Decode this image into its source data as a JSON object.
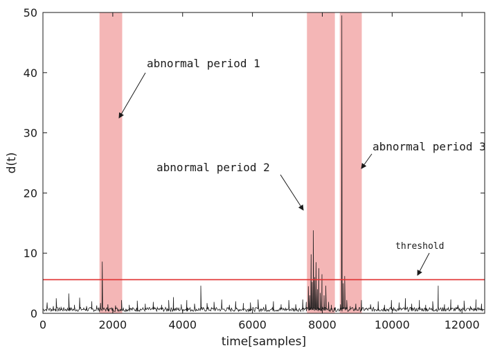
{
  "chart_data": {
    "type": "line",
    "xlabel": "time[samples]",
    "ylabel": "d(t)",
    "xlim": [
      0,
      12650
    ],
    "ylim": [
      0,
      50
    ],
    "xticks": [
      0,
      2000,
      4000,
      6000,
      8000,
      10000,
      12000
    ],
    "yticks": [
      0,
      10,
      20,
      30,
      40,
      50
    ],
    "xtick_labels": [
      "0",
      "2000",
      "4000",
      "6000",
      "8000",
      "10000",
      "12000"
    ],
    "ytick_labels": [
      "0",
      "10",
      "20",
      "30",
      "40",
      "50"
    ],
    "grid": false,
    "colors": {
      "signal": "#1a1a1a",
      "threshold": "#e03030",
      "band": "#f4b6b6"
    },
    "threshold": {
      "value": 5.6,
      "label": "threshold"
    },
    "abnormal_periods": [
      {
        "label": "abnormal period 1",
        "start": 1620,
        "end": 2270
      },
      {
        "label": "abnormal period 2",
        "start": 7560,
        "end": 8360
      },
      {
        "label": "abnormal period 3",
        "start": 8500,
        "end": 9130
      }
    ],
    "baseline_range": [
      0.3,
      1.0
    ],
    "spikes": [
      {
        "x": 120,
        "y": 1.8
      },
      {
        "x": 300,
        "y": 1.2
      },
      {
        "x": 380,
        "y": 2.5
      },
      {
        "x": 520,
        "y": 1.1
      },
      {
        "x": 740,
        "y": 3.3
      },
      {
        "x": 900,
        "y": 1.4
      },
      {
        "x": 1050,
        "y": 2.6
      },
      {
        "x": 1250,
        "y": 1.2
      },
      {
        "x": 1400,
        "y": 2.0
      },
      {
        "x": 1540,
        "y": 1.3
      },
      {
        "x": 1650,
        "y": 1.7
      },
      {
        "x": 1700,
        "y": 8.6
      },
      {
        "x": 1860,
        "y": 1.5
      },
      {
        "x": 2080,
        "y": 1.3
      },
      {
        "x": 2250,
        "y": 2.2
      },
      {
        "x": 2470,
        "y": 1.4
      },
      {
        "x": 2700,
        "y": 2.1
      },
      {
        "x": 2930,
        "y": 1.6
      },
      {
        "x": 3160,
        "y": 1.9
      },
      {
        "x": 3400,
        "y": 1.4
      },
      {
        "x": 3600,
        "y": 2.2
      },
      {
        "x": 3740,
        "y": 2.7
      },
      {
        "x": 3960,
        "y": 1.5
      },
      {
        "x": 4120,
        "y": 2.2
      },
      {
        "x": 4340,
        "y": 1.6
      },
      {
        "x": 4520,
        "y": 4.6
      },
      {
        "x": 4700,
        "y": 1.7
      },
      {
        "x": 4900,
        "y": 1.9
      },
      {
        "x": 5120,
        "y": 2.3
      },
      {
        "x": 5340,
        "y": 1.4
      },
      {
        "x": 5520,
        "y": 2.0
      },
      {
        "x": 5740,
        "y": 1.7
      },
      {
        "x": 5940,
        "y": 1.8
      },
      {
        "x": 6160,
        "y": 2.3
      },
      {
        "x": 6380,
        "y": 1.5
      },
      {
        "x": 6600,
        "y": 2.0
      },
      {
        "x": 6820,
        "y": 1.5
      },
      {
        "x": 7040,
        "y": 2.2
      },
      {
        "x": 7240,
        "y": 1.5
      },
      {
        "x": 7440,
        "y": 2.3
      },
      {
        "x": 7540,
        "y": 1.9
      },
      {
        "x": 7600,
        "y": 4.5
      },
      {
        "x": 7640,
        "y": 3.0
      },
      {
        "x": 7680,
        "y": 9.8
      },
      {
        "x": 7710,
        "y": 5.2
      },
      {
        "x": 7740,
        "y": 13.8
      },
      {
        "x": 7780,
        "y": 6.0
      },
      {
        "x": 7820,
        "y": 8.5
      },
      {
        "x": 7860,
        "y": 4.0
      },
      {
        "x": 7900,
        "y": 7.5
      },
      {
        "x": 7940,
        "y": 3.4
      },
      {
        "x": 7990,
        "y": 6.5
      },
      {
        "x": 8050,
        "y": 3.0
      },
      {
        "x": 8100,
        "y": 4.6
      },
      {
        "x": 8180,
        "y": 1.9
      },
      {
        "x": 8260,
        "y": 1.4
      },
      {
        "x": 8350,
        "y": 0.9
      },
      {
        "x": 8520,
        "y": 1.5
      },
      {
        "x": 8560,
        "y": 49.5
      },
      {
        "x": 8600,
        "y": 5.0
      },
      {
        "x": 8640,
        "y": 6.2
      },
      {
        "x": 8700,
        "y": 2.2
      },
      {
        "x": 8800,
        "y": 1.2
      },
      {
        "x": 8960,
        "y": 1.6
      },
      {
        "x": 9120,
        "y": 2.2
      },
      {
        "x": 9380,
        "y": 1.5
      },
      {
        "x": 9600,
        "y": 2.0
      },
      {
        "x": 9780,
        "y": 1.4
      },
      {
        "x": 9980,
        "y": 2.2
      },
      {
        "x": 10200,
        "y": 1.8
      },
      {
        "x": 10380,
        "y": 2.5
      },
      {
        "x": 10560,
        "y": 1.6
      },
      {
        "x": 10780,
        "y": 2.2
      },
      {
        "x": 10960,
        "y": 1.4
      },
      {
        "x": 11160,
        "y": 2.0
      },
      {
        "x": 11320,
        "y": 4.6
      },
      {
        "x": 11500,
        "y": 1.5
      },
      {
        "x": 11680,
        "y": 2.3
      },
      {
        "x": 11880,
        "y": 1.4
      },
      {
        "x": 12060,
        "y": 2.1
      },
      {
        "x": 12240,
        "y": 1.2
      },
      {
        "x": 12400,
        "y": 2.3
      },
      {
        "x": 12560,
        "y": 1.6
      }
    ]
  }
}
